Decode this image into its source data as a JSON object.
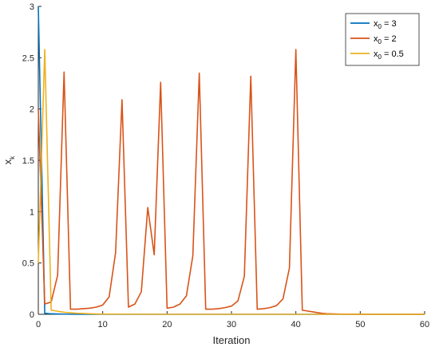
{
  "chart_data": {
    "type": "line",
    "title": "",
    "xlabel": "Iteration",
    "ylabel": "x",
    "ylabel_subscript": "k",
    "xlim": [
      0,
      60
    ],
    "ylim": [
      0,
      3
    ],
    "xticks": [
      0,
      10,
      20,
      30,
      40,
      50,
      60
    ],
    "yticks": [
      0,
      0.5,
      1,
      1.5,
      2,
      2.5,
      3
    ],
    "grid": false,
    "legend_position": "top-right",
    "series": [
      {
        "name": "x0 = 3",
        "label_main": "x",
        "label_sub": "0",
        "label_rest": " = 3",
        "color": "#0072BD",
        "x": [
          0,
          1,
          2,
          3,
          4,
          5,
          6,
          7,
          8,
          9,
          10,
          20,
          30,
          40,
          50,
          60
        ],
        "y": [
          3,
          0.01,
          0.005,
          0.003,
          0.002,
          0.001,
          0.0008,
          0.0005,
          0.0003,
          0.0002,
          0.0001,
          0,
          0,
          0,
          0,
          0
        ]
      },
      {
        "name": "x0 = 2",
        "label_main": "x",
        "label_sub": "0",
        "label_rest": " = 2",
        "color": "#D95319",
        "x": [
          0,
          1,
          2,
          3,
          4,
          5,
          6,
          7,
          8,
          9,
          10,
          11,
          12,
          13,
          14,
          15,
          16,
          17,
          18,
          19,
          20,
          21,
          22,
          23,
          24,
          25,
          26,
          27,
          28,
          29,
          30,
          31,
          32,
          33,
          34,
          35,
          36,
          37,
          38,
          39,
          40,
          41,
          42,
          43,
          44,
          45,
          46,
          47,
          48,
          49,
          50,
          51,
          52,
          53,
          54,
          55,
          56,
          57,
          58,
          59,
          60
        ],
        "y": [
          2,
          0.1,
          0.12,
          0.38,
          2.36,
          0.05,
          0.05,
          0.055,
          0.06,
          0.07,
          0.09,
          0.17,
          0.6,
          2.09,
          0.07,
          0.1,
          0.22,
          1.04,
          0.58,
          2.26,
          0.06,
          0.07,
          0.1,
          0.18,
          0.57,
          2.35,
          0.05,
          0.05,
          0.055,
          0.065,
          0.08,
          0.13,
          0.37,
          2.32,
          0.05,
          0.055,
          0.065,
          0.085,
          0.15,
          0.45,
          2.58,
          0.04,
          0.03,
          0.02,
          0.01,
          0.005,
          0.003,
          0.002,
          0.001,
          0.0005,
          0.0002,
          0,
          0,
          0,
          0,
          0,
          0,
          0,
          0,
          0,
          0
        ]
      },
      {
        "name": "x0 = 0.5",
        "label_main": "x",
        "label_sub": "0",
        "label_rest": " = 0.5",
        "color": "#EDB120",
        "x": [
          0,
          1,
          2,
          3,
          4,
          5,
          6,
          7,
          8,
          9,
          10,
          20,
          30,
          40,
          50,
          60
        ],
        "y": [
          0.5,
          2.58,
          0.04,
          0.03,
          0.02,
          0.015,
          0.01,
          0.008,
          0.005,
          0.003,
          0.002,
          0,
          0,
          0,
          0,
          0
        ]
      }
    ]
  }
}
